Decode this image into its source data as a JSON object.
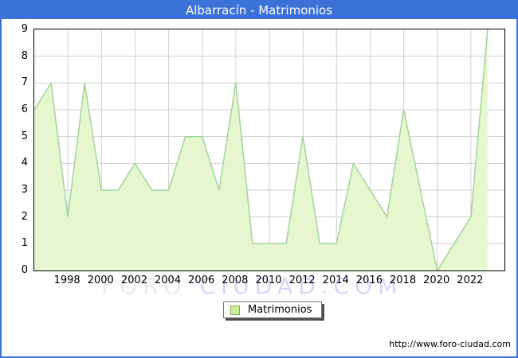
{
  "header": {
    "title": "Albarracín - Matrimonios"
  },
  "colors": {
    "accent": "#3a72d8",
    "grid": "#cfcfcf",
    "area_fill": "#e6f7d0",
    "area_line": "#9fd49c",
    "swatch_fill": "#c9ef96",
    "swatch_border": "#84a860",
    "watermark_gray": "#ebebe7",
    "watermark_blue": "#d5d8f3"
  },
  "legend": {
    "label": "Matrimonios"
  },
  "watermark": {
    "left": "FORO",
    "right": "CIUDAD.COM"
  },
  "footer": {
    "url": "http://www.foro-ciudad.com"
  },
  "chart_data": {
    "type": "area",
    "title": "Albarracín - Matrimonios",
    "series": [
      {
        "name": "Matrimonios",
        "x": [
          1996,
          1997,
          1998,
          1999,
          2000,
          2001,
          2002,
          2003,
          2004,
          2005,
          2006,
          2007,
          2008,
          2009,
          2010,
          2011,
          2012,
          2013,
          2014,
          2015,
          2016,
          2017,
          2018,
          2019,
          2020,
          2021,
          2022,
          2023
        ],
        "values": [
          6,
          7,
          2,
          7,
          3,
          3,
          4,
          3,
          3,
          5,
          5,
          3,
          7,
          1,
          1,
          1,
          5,
          1,
          1,
          4,
          3,
          2,
          6,
          3,
          0,
          1,
          2,
          9
        ]
      }
    ],
    "xlabel": "",
    "ylabel": "",
    "xlim": [
      1996,
      2024
    ],
    "ylim": [
      0,
      9
    ],
    "x_ticks": [
      1998,
      2000,
      2002,
      2004,
      2006,
      2008,
      2010,
      2012,
      2014,
      2016,
      2018,
      2020,
      2022
    ],
    "y_ticks": [
      0,
      1,
      2,
      3,
      4,
      5,
      6,
      7,
      8,
      9
    ],
    "grid": true,
    "legend_position": "bottom-center"
  }
}
